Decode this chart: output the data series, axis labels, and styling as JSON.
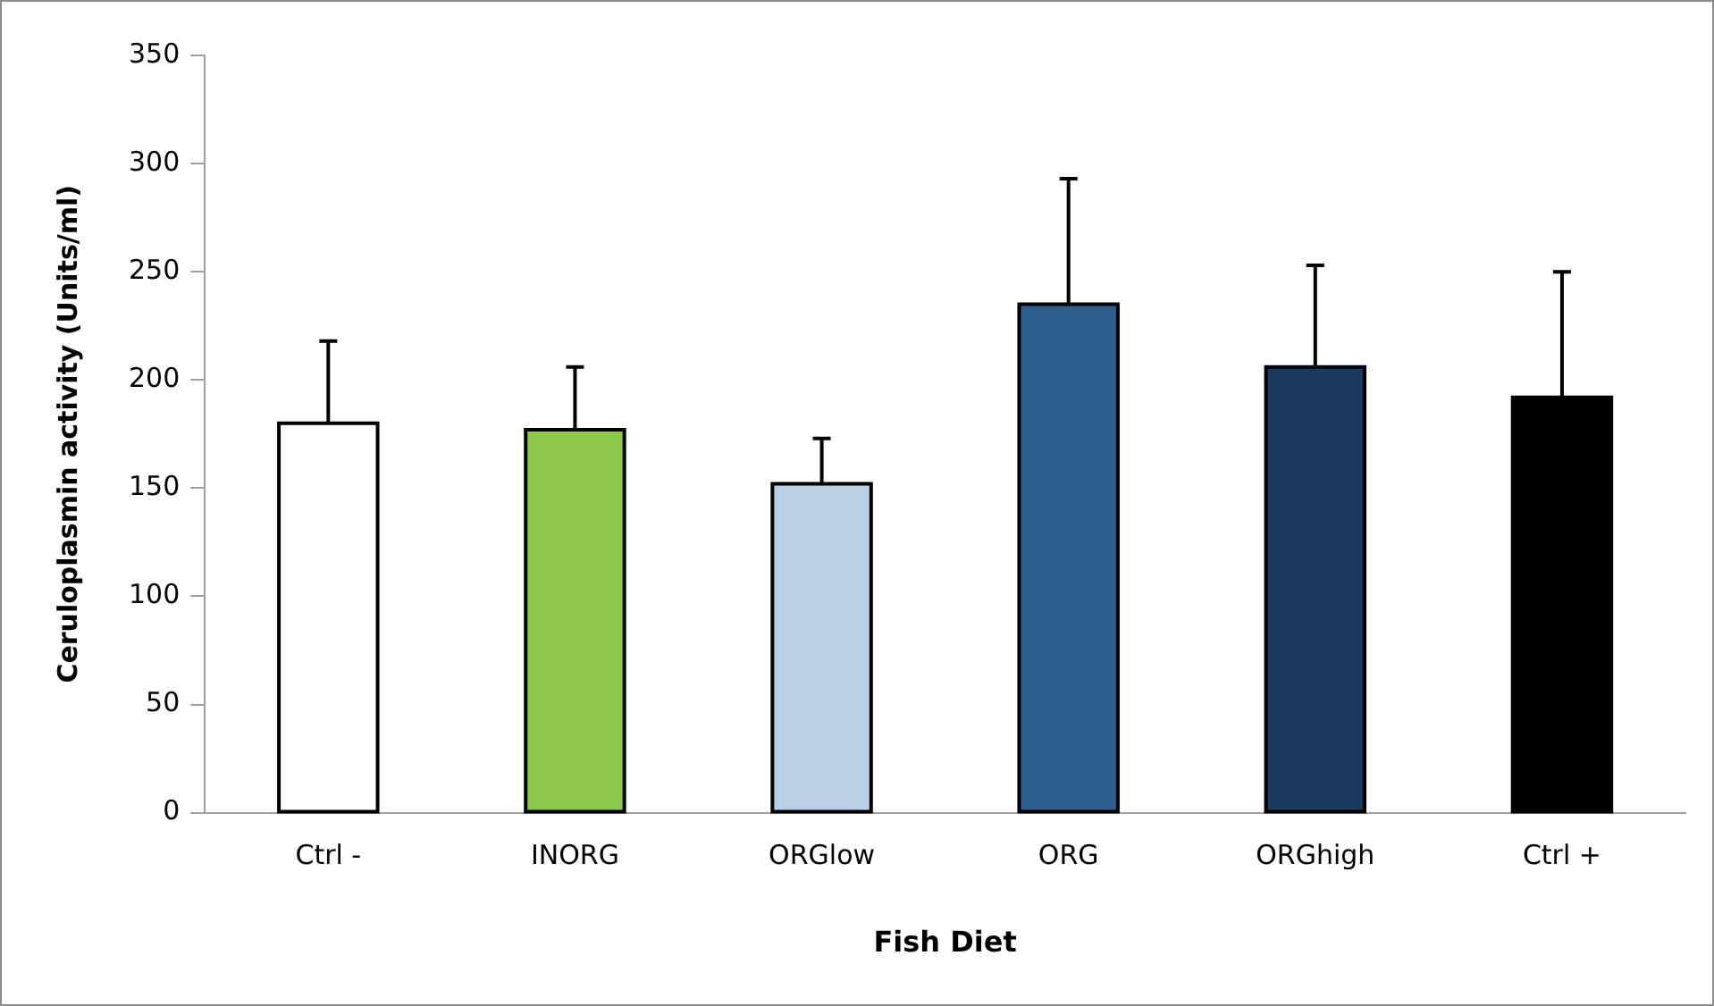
{
  "chart_data": {
    "type": "bar",
    "xlabel": "Fish Diet",
    "ylabel": "Ceruloplasmin activity (Units/ml)",
    "categories": [
      "Ctrl -",
      "INORG",
      "ORGlow",
      "ORG",
      "ORGhigh",
      "Ctrl +"
    ],
    "values": [
      180,
      177,
      152,
      235,
      206,
      192
    ],
    "colors": [
      "#ffffff",
      "#8dc84b",
      "#b8cfe4",
      "#2e5f8f",
      "#1b3b5e",
      "#000000"
    ],
    "errors": [
      [
        180,
        218
      ],
      [
        177,
        206
      ],
      [
        152,
        173
      ],
      [
        235,
        293
      ],
      [
        206,
        253
      ],
      [
        192,
        250
      ]
    ],
    "ylim": [
      0,
      350
    ],
    "yticks": [
      0,
      50,
      100,
      150,
      200,
      250,
      300,
      350
    ],
    "grid": false,
    "legend": false
  }
}
